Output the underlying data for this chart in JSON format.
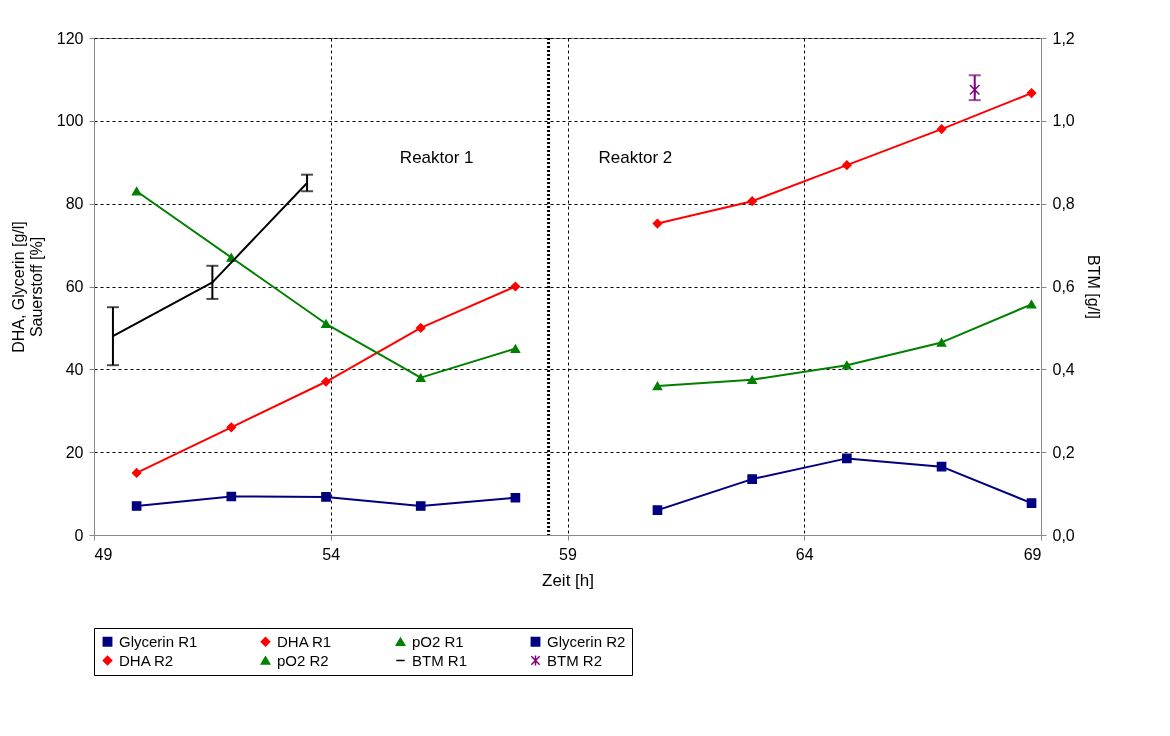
{
  "chart_data": {
    "type": "line",
    "xlabel": "Zeit [h]",
    "ylabel": "DHA, Glycerin [g/l]\nSauerstoff [%]",
    "y2label": "BTM [g/l]",
    "xlim": [
      49,
      69
    ],
    "xticks": [
      49,
      54,
      59,
      64,
      69
    ],
    "ylim": [
      0,
      120
    ],
    "yticks": [
      0,
      20,
      40,
      60,
      80,
      100,
      120
    ],
    "y2lim": [
      0,
      1.2
    ],
    "y2ticks": [
      {
        "value": 0,
        "label": "0,0"
      },
      {
        "value": 0.2,
        "label": "0,2"
      },
      {
        "value": 0.4,
        "label": "0,4"
      },
      {
        "value": 0.6,
        "label": "0,6"
      },
      {
        "value": 0.8,
        "label": "0,8"
      },
      {
        "value": 1.0,
        "label": "1,0"
      },
      {
        "value": 1.2,
        "label": "1,2"
      }
    ],
    "grid": true,
    "legend": "bottom",
    "series": [
      {
        "name": "Glycerin R1",
        "color": "#000080",
        "marker": "square",
        "x": [
          49.9,
          51.9,
          53.9,
          55.9,
          57.9
        ],
        "values": [
          7,
          9.3,
          9.2,
          7,
          9
        ]
      },
      {
        "name": "DHA R1",
        "color": "#ff0000",
        "marker": "diamond",
        "x": [
          49.9,
          51.9,
          53.9,
          55.9,
          57.9
        ],
        "values": [
          15,
          26,
          37,
          50,
          60
        ]
      },
      {
        "name": "pO2 R1",
        "color": "#008000",
        "marker": "triangle",
        "x": [
          49.9,
          51.9,
          53.9,
          55.9,
          57.9
        ],
        "values": [
          83,
          67,
          51,
          38,
          45
        ]
      },
      {
        "name": "Glycerin R2",
        "color": "#000080",
        "marker": "square",
        "x": [
          60.9,
          62.9,
          64.9,
          66.9,
          68.8
        ],
        "values": [
          6,
          13.5,
          18.5,
          16.5,
          7.7
        ]
      },
      {
        "name": "DHA R2",
        "color": "#ff0000",
        "marker": "diamond",
        "x": [
          60.9,
          62.9,
          64.9,
          66.9,
          68.8
        ],
        "values": [
          75.2,
          80.6,
          89.3,
          98,
          106.7
        ]
      },
      {
        "name": "pO2 R2",
        "color": "#008000",
        "marker": "triangle",
        "x": [
          60.9,
          62.9,
          64.9,
          66.9,
          68.8
        ],
        "values": [
          36,
          37.5,
          41,
          46.5,
          55.7
        ]
      },
      {
        "name": "BTM R1",
        "color": "#000000",
        "marker": "none",
        "axis": "y2",
        "x": [
          49.4,
          51.5,
          53.5
        ],
        "values": [
          0.48,
          0.61,
          0.85
        ],
        "errors": [
          [
            0.41,
            0.55
          ],
          [
            0.57,
            0.65
          ],
          [
            0.83,
            0.87
          ]
        ]
      },
      {
        "name": "BTM R2",
        "color": "#800080",
        "marker": "cross",
        "axis": "y2",
        "x": [
          67.6
        ],
        "values": [
          1.075
        ],
        "errors": [
          [
            1.05,
            1.11
          ]
        ]
      }
    ],
    "ref_lines": [
      {
        "axis": "x",
        "value": 58.6,
        "color": "#000000",
        "line_style": "dotted"
      }
    ],
    "annotations": [
      "Reaktor 1",
      "Reaktor 2"
    ]
  }
}
